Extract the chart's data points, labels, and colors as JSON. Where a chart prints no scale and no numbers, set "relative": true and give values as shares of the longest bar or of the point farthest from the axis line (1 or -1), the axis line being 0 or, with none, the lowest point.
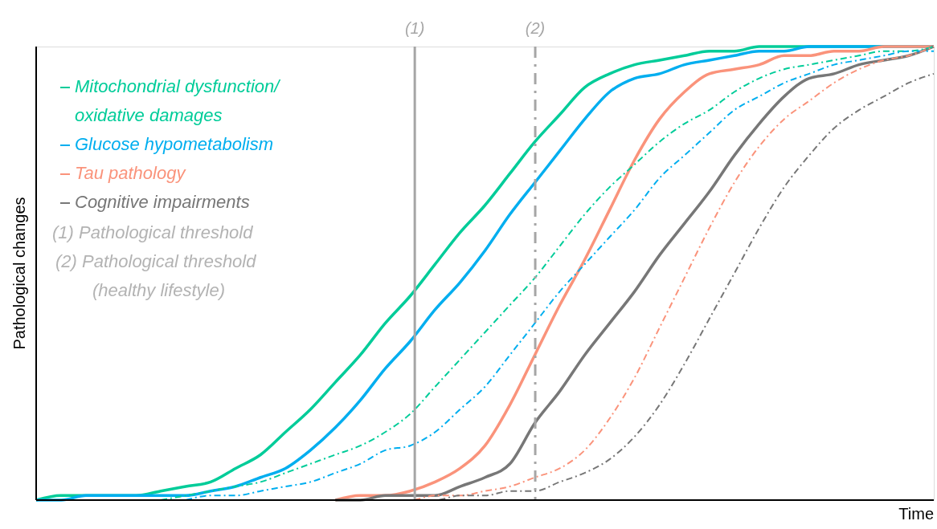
{
  "chart_data": {
    "type": "line",
    "relative": true,
    "xlabel": "Time",
    "ylabel": "Pathological changes",
    "categories": [
      null,
      null,
      null,
      null,
      null,
      null,
      null,
      null,
      null,
      null,
      null,
      null,
      null,
      null,
      null,
      null,
      null,
      null,
      null,
      null,
      null,
      null,
      null,
      null,
      null,
      null,
      null,
      null,
      null,
      null,
      null,
      null,
      null,
      null,
      null,
      null,
      null
    ],
    "series": [
      {
        "name": "Mitochondrial dysfunction/\noxidative damages",
        "color": "#00cc99",
        "line_style": "solid",
        "values": [
          0.0,
          0.01,
          0.01,
          0.01,
          0.01,
          0.02,
          0.03,
          0.04,
          0.07,
          0.1,
          0.15,
          0.2,
          0.26,
          0.32,
          0.39,
          0.45,
          0.52,
          0.59,
          0.65,
          0.72,
          0.79,
          0.85,
          0.91,
          0.94,
          0.96,
          0.97,
          0.98,
          0.99,
          0.99,
          1.0,
          1.0,
          1.0,
          1.0,
          1.0,
          1.0,
          1.0,
          1.0
        ]
      },
      {
        "name": "Glucose hypometabolism",
        "color": "#00aeef",
        "line_style": "solid",
        "values": [
          0.0,
          0.0,
          0.01,
          0.01,
          0.01,
          0.01,
          0.01,
          0.02,
          0.03,
          0.05,
          0.07,
          0.11,
          0.16,
          0.22,
          0.29,
          0.35,
          0.42,
          0.48,
          0.55,
          0.63,
          0.7,
          0.77,
          0.84,
          0.9,
          0.93,
          0.94,
          0.96,
          0.97,
          0.98,
          0.99,
          0.99,
          1.0,
          1.0,
          1.0,
          1.0,
          1.0,
          1.0
        ]
      },
      {
        "name": "Tau pathology",
        "color": "#fa937b",
        "line_style": "solid",
        "values": [
          null,
          null,
          null,
          null,
          null,
          null,
          null,
          null,
          null,
          null,
          null,
          null,
          0.0,
          0.01,
          0.01,
          0.02,
          0.04,
          0.07,
          0.12,
          0.21,
          0.32,
          0.43,
          0.53,
          0.64,
          0.75,
          0.84,
          0.9,
          0.94,
          0.95,
          0.96,
          0.98,
          0.98,
          0.99,
          0.99,
          1.0,
          1.0,
          1.0
        ]
      },
      {
        "name": "Cognitive impairments",
        "color": "#777777",
        "line_style": "solid",
        "values": [
          null,
          null,
          null,
          null,
          null,
          null,
          null,
          null,
          null,
          null,
          null,
          null,
          0.0,
          0.0,
          0.01,
          0.01,
          0.01,
          0.03,
          0.05,
          0.08,
          0.17,
          0.24,
          0.32,
          0.39,
          0.46,
          0.54,
          0.61,
          0.68,
          0.76,
          0.83,
          0.89,
          0.93,
          0.94,
          0.96,
          0.97,
          0.98,
          1.0
        ]
      },
      {
        "color": "#00cc99",
        "line_style": "dashed",
        "values": [
          null,
          null,
          null,
          null,
          null,
          0.0,
          0.01,
          0.02,
          0.03,
          0.04,
          0.06,
          0.08,
          0.1,
          0.12,
          0.15,
          0.19,
          0.25,
          0.31,
          0.37,
          0.43,
          0.49,
          0.56,
          0.63,
          0.69,
          0.74,
          0.79,
          0.83,
          0.86,
          0.9,
          0.93,
          0.95,
          0.96,
          0.97,
          0.98,
          0.99,
          0.99,
          1.0
        ]
      },
      {
        "color": "#00aeef",
        "line_style": "dashed",
        "values": [
          null,
          null,
          null,
          null,
          null,
          null,
          0.0,
          0.01,
          0.01,
          0.02,
          0.03,
          0.04,
          0.06,
          0.08,
          0.11,
          0.12,
          0.15,
          0.2,
          0.25,
          0.32,
          0.39,
          0.46,
          0.52,
          0.58,
          0.64,
          0.71,
          0.76,
          0.81,
          0.86,
          0.89,
          0.92,
          0.94,
          0.96,
          0.97,
          0.98,
          0.99,
          0.99
        ]
      },
      {
        "color": "#fa937b",
        "line_style": "dashed",
        "values": [
          null,
          null,
          null,
          null,
          null,
          null,
          null,
          null,
          null,
          null,
          null,
          null,
          null,
          null,
          0.0,
          0.0,
          0.01,
          0.01,
          0.02,
          0.03,
          0.05,
          0.07,
          0.11,
          0.18,
          0.27,
          0.38,
          0.49,
          0.6,
          0.7,
          0.78,
          0.84,
          0.88,
          0.92,
          0.95,
          0.97,
          0.98,
          1.0
        ]
      },
      {
        "color": "#777777",
        "line_style": "dashed",
        "values": [
          null,
          null,
          null,
          null,
          null,
          null,
          null,
          null,
          null,
          null,
          null,
          null,
          null,
          null,
          null,
          0.0,
          0.0,
          0.01,
          0.01,
          0.02,
          0.02,
          0.04,
          0.06,
          0.09,
          0.14,
          0.21,
          0.3,
          0.4,
          0.5,
          0.6,
          0.69,
          0.76,
          0.82,
          0.86,
          0.89,
          0.92,
          0.94
        ]
      }
    ],
    "annotations": [
      "(1)",
      "(2)",
      "(1)  Pathological threshold",
      "(2) Pathological threshold",
      "(healthy lifestyle)"
    ],
    "legend": "top left",
    "grid": false,
    "tick_labels": false
  }
}
